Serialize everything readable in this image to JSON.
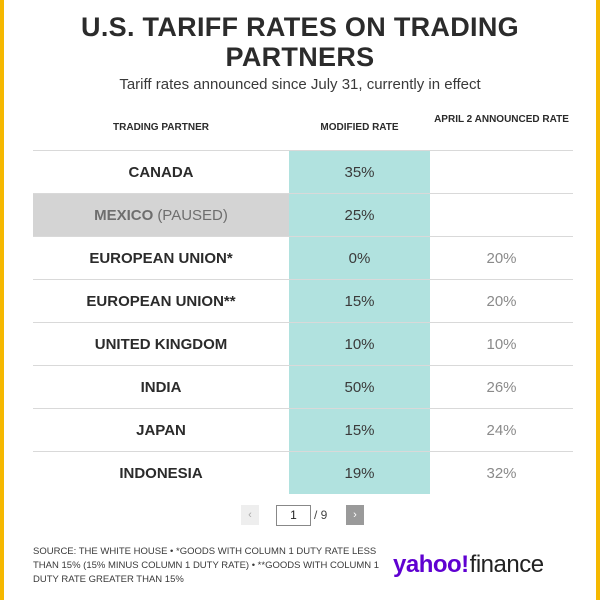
{
  "title": "U.S. TARIFF RATES ON TRADING PARTNERS",
  "subtitle": "Tariff rates announced since July 31, currently in effect",
  "chart_data": {
    "type": "table",
    "headers": [
      "TRADING PARTNER",
      "MODIFIED RATE",
      "APRIL 2 ANNOUNCED RATE"
    ],
    "rows": [
      {
        "partner": "CANADA",
        "note": "",
        "modified": "35%",
        "april2": ""
      },
      {
        "partner": "MEXICO",
        "note": "(PAUSED)",
        "modified": "25%",
        "april2": ""
      },
      {
        "partner": "EUROPEAN UNION*",
        "note": "",
        "modified": "0%",
        "april2": "20%"
      },
      {
        "partner": "EUROPEAN UNION**",
        "note": "",
        "modified": "15%",
        "april2": "20%"
      },
      {
        "partner": "UNITED KINGDOM",
        "note": "",
        "modified": "10%",
        "april2": "10%"
      },
      {
        "partner": "INDIA",
        "note": "",
        "modified": "50%",
        "april2": "26%"
      },
      {
        "partner": "JAPAN",
        "note": "",
        "modified": "15%",
        "april2": "24%"
      },
      {
        "partner": "INDONESIA",
        "note": "",
        "modified": "19%",
        "april2": "32%"
      }
    ]
  },
  "pager": {
    "prev": "‹",
    "current": "1",
    "total": "/ 9",
    "next": "›"
  },
  "source": "SOURCE: THE WHITE HOUSE • *GOODS WITH COLUMN 1 DUTY RATE LESS THAN 15% (15% MINUS COLUMN 1 DUTY RATE) • **GOODS WITH COLUMN 1 DUTY RATE GREATER THAN 15%",
  "logo": {
    "brand": "yahoo!",
    "product": "finance"
  },
  "colors": {
    "accent_border": "#f5b800",
    "highlight_column": "#b1e2df",
    "logo_purple": "#5f01d1"
  }
}
